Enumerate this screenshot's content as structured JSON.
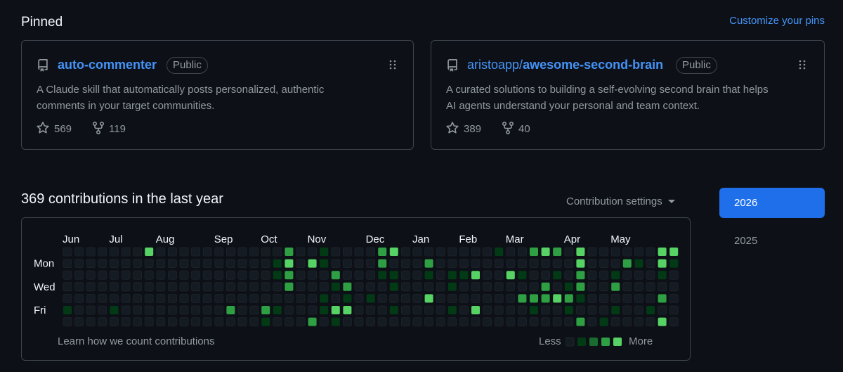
{
  "pinned": {
    "title": "Pinned",
    "customize": "Customize your pins",
    "cards": [
      {
        "name": "auto-commenter",
        "visibility": "Public",
        "description": [
          "A Claude skill that automatically posts personalized, authentic",
          "comments in your target communities."
        ],
        "stars": "569",
        "forks": "119"
      },
      {
        "owner": "aristoapp/",
        "name": "awesome-second-brain",
        "visibility": "Public",
        "description": [
          "A curated solutions to building a self-evolving second brain that helps",
          "AI agents understand your personal and team context."
        ],
        "stars": "389",
        "forks": "40"
      }
    ]
  },
  "contributions": {
    "title": "369 contributions in the last year",
    "settings": "Contribution settings",
    "months": [
      "Jun",
      "Jul",
      "Aug",
      "Sep",
      "Oct",
      "Nov",
      "Dec",
      "Jan",
      "Feb",
      "Mar",
      "Apr",
      "May"
    ],
    "days": [
      "Mon",
      "Wed",
      "Fri"
    ],
    "grid": [
      [
        0,
        0,
        0,
        0,
        0,
        0,
        0,
        4,
        0,
        0,
        0,
        0,
        0,
        0,
        0,
        0,
        0,
        0,
        0,
        3,
        0,
        0,
        1,
        0,
        0,
        0,
        0,
        3,
        4,
        0,
        0,
        0,
        0,
        0,
        0,
        0,
        0,
        1,
        0,
        0,
        3,
        4,
        3,
        0,
        4,
        0,
        0,
        0,
        0,
        0,
        0,
        4,
        4
      ],
      [
        0,
        0,
        0,
        0,
        0,
        0,
        0,
        0,
        0,
        0,
        0,
        0,
        0,
        0,
        0,
        0,
        0,
        0,
        1,
        4,
        0,
        4,
        1,
        0,
        0,
        0,
        0,
        3,
        0,
        0,
        0,
        3,
        0,
        0,
        0,
        0,
        0,
        0,
        0,
        0,
        0,
        0,
        0,
        0,
        4,
        0,
        0,
        0,
        3,
        1,
        0,
        4,
        1
      ],
      [
        0,
        0,
        0,
        0,
        0,
        0,
        0,
        0,
        0,
        0,
        0,
        0,
        0,
        0,
        0,
        0,
        0,
        0,
        1,
        3,
        0,
        0,
        0,
        3,
        0,
        0,
        0,
        1,
        1,
        0,
        0,
        1,
        0,
        1,
        1,
        4,
        0,
        0,
        4,
        1,
        0,
        0,
        1,
        0,
        3,
        0,
        0,
        1,
        0,
        0,
        0,
        1,
        0
      ],
      [
        0,
        0,
        0,
        0,
        0,
        0,
        0,
        0,
        0,
        0,
        0,
        0,
        0,
        0,
        0,
        0,
        0,
        0,
        0,
        3,
        0,
        0,
        0,
        1,
        3,
        0,
        0,
        0,
        1,
        0,
        0,
        0,
        0,
        1,
        0,
        0,
        0,
        0,
        0,
        0,
        0,
        3,
        0,
        1,
        3,
        0,
        0,
        3,
        0,
        0,
        0,
        0,
        0
      ],
      [
        0,
        0,
        0,
        0,
        0,
        0,
        0,
        0,
        0,
        0,
        0,
        0,
        0,
        0,
        0,
        0,
        0,
        0,
        0,
        0,
        0,
        0,
        1,
        0,
        1,
        0,
        1,
        0,
        0,
        0,
        0,
        4,
        0,
        0,
        0,
        0,
        0,
        0,
        0,
        3,
        3,
        3,
        4,
        3,
        1,
        0,
        0,
        0,
        0,
        0,
        0,
        3,
        0
      ],
      [
        1,
        0,
        0,
        0,
        1,
        0,
        0,
        0,
        0,
        0,
        0,
        0,
        0,
        0,
        3,
        0,
        0,
        3,
        1,
        0,
        0,
        0,
        1,
        4,
        4,
        0,
        0,
        0,
        1,
        0,
        0,
        0,
        0,
        1,
        0,
        4,
        0,
        0,
        0,
        0,
        1,
        0,
        0,
        1,
        0,
        0,
        0,
        1,
        0,
        0,
        1,
        0,
        0
      ],
      [
        0,
        0,
        0,
        0,
        0,
        0,
        0,
        0,
        0,
        0,
        0,
        0,
        0,
        0,
        0,
        0,
        0,
        1,
        0,
        0,
        0,
        3,
        0,
        1,
        0,
        0,
        0,
        0,
        0,
        0,
        0,
        0,
        0,
        0,
        0,
        0,
        0,
        0,
        0,
        0,
        0,
        0,
        0,
        0,
        3,
        0,
        1,
        0,
        0,
        0,
        0,
        4,
        0
      ]
    ],
    "learn": "Learn how we count contributions",
    "less": "Less",
    "more": "More"
  },
  "years": [
    "2026",
    "2025"
  ]
}
